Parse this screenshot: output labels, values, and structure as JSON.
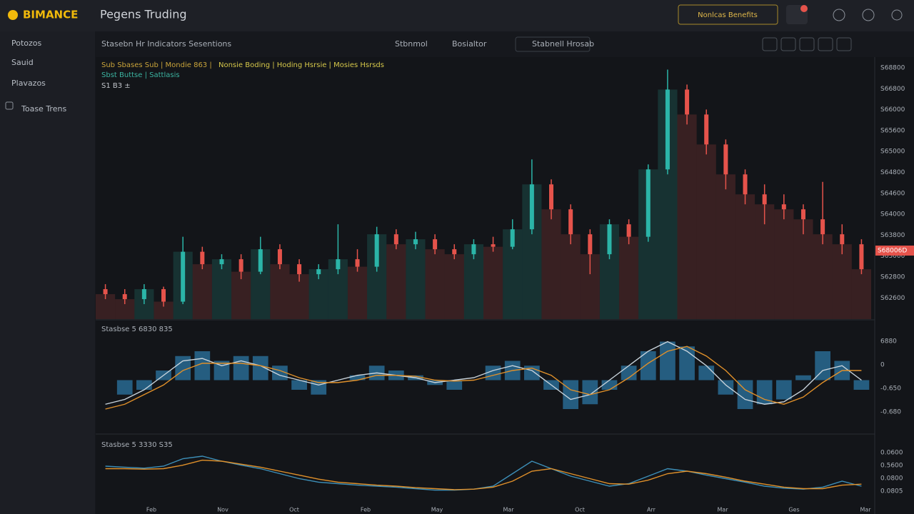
{
  "header": {
    "logo": "BIMANCE",
    "title": "Pegens Truding",
    "button": "Nonlcas Benefits"
  },
  "sidebar": [
    "Potozos",
    "Sauid",
    "Plavazos",
    "Toase Trens"
  ],
  "toolbar": [
    "Stasebn Hr Indicators Sesentions",
    "Stbnmol",
    "Bosialtor",
    "Stabnell Hrosab"
  ],
  "legend": [
    "Sub Sbases Sub | Mondie 863 |",
    "Nonsie Boding | Hoding Hsrsie | Mosies Hsrsds",
    "Sbst Buttse | Sattlasis",
    "S1 B3 ±"
  ],
  "chart": {
    "type": "candlestick",
    "ylim": [
      0,
      105
    ],
    "up_color": "#2bb5a8",
    "down_color": "#e5534b",
    "open": [
      12,
      10,
      8,
      12,
      7,
      27,
      22,
      24,
      19,
      28,
      22,
      18,
      20,
      24,
      21,
      34,
      30,
      32,
      28,
      26,
      30,
      29,
      36,
      54,
      44,
      34,
      26,
      38,
      33,
      60,
      92,
      82,
      70,
      58,
      50,
      46,
      44,
      40,
      34,
      30
    ],
    "high": [
      14,
      12,
      14,
      13,
      33,
      29,
      26,
      26,
      33,
      30,
      24,
      22,
      38,
      28,
      37,
      36,
      35,
      34,
      30,
      32,
      33,
      40,
      64,
      56,
      46,
      36,
      40,
      40,
      62,
      100,
      94,
      84,
      72,
      60,
      54,
      50,
      46,
      55,
      38,
      32
    ],
    "low": [
      8,
      6,
      6,
      5,
      6,
      20,
      20,
      16,
      18,
      20,
      15,
      16,
      18,
      19,
      19,
      28,
      28,
      26,
      24,
      24,
      27,
      28,
      34,
      40,
      30,
      18,
      24,
      30,
      31,
      58,
      78,
      66,
      52,
      46,
      38,
      40,
      34,
      30,
      26,
      18
    ],
    "close": [
      10,
      8,
      12,
      7,
      27,
      22,
      24,
      19,
      28,
      22,
      18,
      20,
      24,
      21,
      34,
      30,
      32,
      28,
      26,
      30,
      29,
      36,
      54,
      44,
      34,
      26,
      38,
      33,
      60,
      92,
      82,
      70,
      58,
      50,
      46,
      44,
      40,
      34,
      30,
      20
    ],
    "axis_labels": [
      "S68800",
      "S66800",
      "S66000",
      "S65600",
      "S65000",
      "S64800",
      "S64600",
      "S64000",
      "S63800",
      "S63000",
      "S62800",
      "S62600"
    ],
    "last_price": "S68006D"
  },
  "macd": {
    "label": "Stasbse 5 6830 835",
    "ylim": [
      -1,
      1
    ],
    "hist_color": "#2b6f9a",
    "macd_color": "#c9d4dc",
    "signal_color": "#e0902a",
    "hist": [
      0,
      -0.3,
      -0.2,
      0.2,
      0.5,
      0.6,
      0.4,
      0.5,
      0.5,
      0.3,
      -0.2,
      -0.3,
      0,
      0.1,
      0.3,
      0.2,
      0.1,
      -0.1,
      -0.2,
      0,
      0.3,
      0.4,
      0.3,
      -0.2,
      -0.6,
      -0.5,
      -0.2,
      0.3,
      0.6,
      0.8,
      0.7,
      0.3,
      -0.3,
      -0.6,
      -0.5,
      -0.4,
      0.1,
      0.6,
      0.4,
      -0.2
    ],
    "macd": [
      -0.5,
      -0.4,
      -0.2,
      0.1,
      0.4,
      0.45,
      0.3,
      0.4,
      0.3,
      0.1,
      0,
      -0.1,
      0,
      0.1,
      0.15,
      0.1,
      0.05,
      -0.05,
      0,
      0.05,
      0.2,
      0.3,
      0.2,
      -0.1,
      -0.4,
      -0.3,
      0,
      0.3,
      0.6,
      0.8,
      0.6,
      0.3,
      -0.1,
      -0.4,
      -0.5,
      -0.45,
      -0.2,
      0.2,
      0.3,
      0
    ],
    "signal": [
      -0.6,
      -0.5,
      -0.3,
      -0.1,
      0.2,
      0.35,
      0.35,
      0.35,
      0.3,
      0.2,
      0.05,
      -0.05,
      -0.05,
      0,
      0.1,
      0.1,
      0.08,
      0,
      -0.02,
      0,
      0.1,
      0.2,
      0.25,
      0.1,
      -0.2,
      -0.3,
      -0.2,
      0.05,
      0.35,
      0.6,
      0.7,
      0.5,
      0.2,
      -0.2,
      -0.4,
      -0.5,
      -0.35,
      -0.05,
      0.2,
      0.2
    ],
    "axis_labels": [
      "6880",
      "0",
      "-0.650",
      "-0.680"
    ]
  },
  "oscillator": {
    "label": "Stasbse 5 3330 S35",
    "ylim": [
      0,
      100
    ],
    "a_color": "#3d8fb8",
    "b_color": "#e0902a",
    "a": [
      60,
      58,
      56,
      60,
      75,
      80,
      70,
      62,
      55,
      45,
      35,
      28,
      25,
      22,
      20,
      18,
      15,
      12,
      12,
      14,
      20,
      45,
      70,
      55,
      40,
      30,
      20,
      25,
      40,
      55,
      50,
      42,
      35,
      28,
      20,
      16,
      14,
      18,
      30,
      20
    ],
    "b": [
      55,
      55,
      54,
      55,
      62,
      72,
      70,
      64,
      58,
      50,
      42,
      34,
      28,
      25,
      22,
      20,
      17,
      15,
      13,
      14,
      18,
      30,
      50,
      55,
      45,
      35,
      25,
      24,
      32,
      45,
      50,
      45,
      38,
      30,
      24,
      18,
      15,
      15,
      22,
      24
    ],
    "axis_labels": [
      "0.0600",
      "0.5600",
      "0.0800",
      "0.0805"
    ]
  },
  "x_labels": [
    "Feb",
    "Nov",
    "Oct",
    "Feb",
    "May",
    "Mar",
    "Oct",
    "Arr",
    "Mar",
    "Ges",
    "Mar"
  ]
}
